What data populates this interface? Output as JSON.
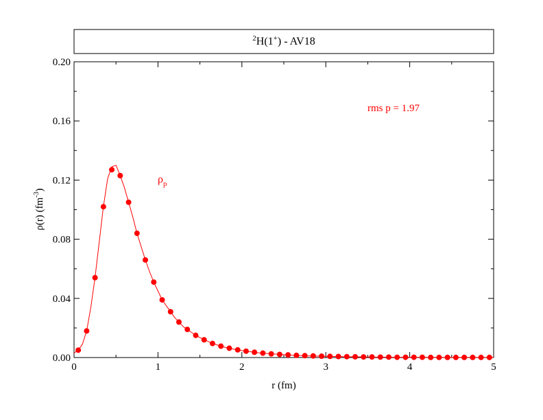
{
  "chart_data": {
    "type": "scatter",
    "title": {
      "sup1": "2",
      "base": "H(1",
      "sup2": "+",
      "tail": ") - AV18"
    },
    "xlabel": "r (fm)",
    "ylabel": {
      "pre": "ρ(r) (fm",
      "sup": "-3",
      "post": ")"
    },
    "xlim": [
      0,
      5
    ],
    "ylim": [
      0,
      0.2
    ],
    "x_ticks": [
      "0",
      "1",
      "2",
      "3",
      "4",
      "5"
    ],
    "y_ticks": [
      "0.00",
      "0.04",
      "0.08",
      "0.12",
      "0.16",
      "0.20"
    ],
    "series_label": {
      "base": "ρ",
      "sub": "p"
    },
    "annotation": "rms p = 1.97",
    "color": "#ff0000",
    "points": {
      "x": [
        0.05,
        0.15,
        0.25,
        0.35,
        0.45,
        0.55,
        0.65,
        0.75,
        0.85,
        0.95,
        1.05,
        1.15,
        1.25,
        1.35,
        1.45,
        1.55,
        1.65,
        1.75,
        1.85,
        1.95,
        2.05,
        2.15,
        2.25,
        2.35,
        2.45,
        2.55,
        2.65,
        2.75,
        2.85,
        2.95,
        3.05,
        3.15,
        3.25,
        3.35,
        3.45,
        3.55,
        3.65,
        3.75,
        3.85,
        3.95,
        4.05,
        4.15,
        4.25,
        4.35,
        4.45,
        4.55,
        4.65,
        4.75,
        4.85,
        4.95
      ],
      "y": [
        0.005,
        0.018,
        0.054,
        0.102,
        0.127,
        0.123,
        0.105,
        0.084,
        0.066,
        0.051,
        0.039,
        0.031,
        0.024,
        0.019,
        0.015,
        0.012,
        0.0095,
        0.0077,
        0.0063,
        0.0052,
        0.0043,
        0.0036,
        0.003,
        0.0025,
        0.0021,
        0.0018,
        0.0015,
        0.0013,
        0.0011,
        0.0009,
        0.0008,
        0.0007,
        0.0006,
        0.0005,
        0.0004,
        0.0004,
        0.0003,
        0.0003,
        0.0002,
        0.0002,
        0.0002,
        0.0002,
        0.0001,
        0.0001,
        0.0001,
        0.0001,
        0.0001,
        0.0001,
        0.0001,
        0.0001
      ]
    },
    "curve": {
      "x": [
        0,
        0.05,
        0.1,
        0.15,
        0.2,
        0.25,
        0.3,
        0.35,
        0.4,
        0.45,
        0.5,
        0.55,
        0.6,
        0.65,
        0.7,
        0.75,
        0.8,
        0.85,
        0.9,
        0.95,
        1.0,
        1.05,
        1.1,
        1.15,
        1.2,
        1.25,
        1.3,
        1.35,
        1.4,
        1.45,
        1.5,
        1.6,
        1.7,
        1.8,
        1.9,
        2.0,
        2.2,
        2.4,
        2.6,
        2.8,
        3.0,
        3.3,
        3.6,
        4.0,
        4.5,
        5.0
      ],
      "y": [
        0.003,
        0.005,
        0.009,
        0.018,
        0.034,
        0.054,
        0.078,
        0.102,
        0.121,
        0.129,
        0.13,
        0.123,
        0.115,
        0.105,
        0.095,
        0.084,
        0.075,
        0.066,
        0.058,
        0.051,
        0.045,
        0.039,
        0.035,
        0.031,
        0.027,
        0.024,
        0.021,
        0.019,
        0.017,
        0.015,
        0.0135,
        0.0108,
        0.0086,
        0.0069,
        0.0057,
        0.0047,
        0.0032,
        0.0023,
        0.0016,
        0.0011,
        0.0008,
        0.0005,
        0.0003,
        0.0002,
        0.0001,
        0.0001
      ]
    }
  }
}
